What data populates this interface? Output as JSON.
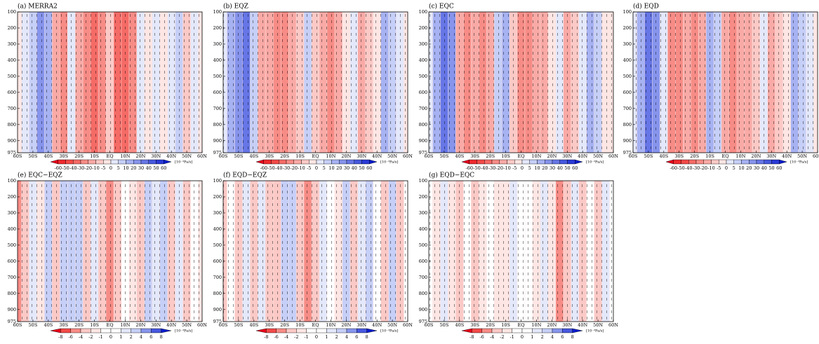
{
  "chart_data": [
    {
      "type": "heatmap",
      "title": "(a) MERRA2",
      "x": [
        -60,
        -55,
        -50,
        -45,
        -40,
        -35,
        -30,
        -25,
        -20,
        -15,
        -10,
        -5,
        0,
        5,
        10,
        15,
        20,
        25,
        30,
        35,
        40,
        45,
        50,
        55,
        60
      ],
      "values": [
        0,
        5,
        10,
        30,
        20,
        -10,
        -20,
        5,
        -10,
        -20,
        -30,
        -25,
        -5,
        -30,
        -35,
        -20,
        5,
        0,
        5,
        0,
        5,
        10,
        -5,
        5,
        0
      ],
      "xlim": [
        -60,
        60
      ],
      "ylim": [
        100,
        975
      ],
      "xticks": [
        {
          "value": -60,
          "label": "60S"
        },
        {
          "value": -50,
          "label": "50S"
        },
        {
          "value": -40,
          "label": "40S"
        },
        {
          "value": -30,
          "label": "30S"
        },
        {
          "value": -20,
          "label": "20S"
        },
        {
          "value": -10,
          "label": "10S"
        },
        {
          "value": 0,
          "label": "EQ"
        },
        {
          "value": 10,
          "label": "10N"
        },
        {
          "value": 20,
          "label": "20N"
        },
        {
          "value": 30,
          "label": "30N"
        },
        {
          "value": 40,
          "label": "40N"
        },
        {
          "value": 50,
          "label": "50N"
        },
        {
          "value": 60,
          "label": "60N"
        }
      ],
      "yticks": [
        100,
        200,
        300,
        400,
        500,
        600,
        700,
        800,
        900,
        975
      ],
      "colorbar": {
        "levels": [
          -60,
          -50,
          -40,
          -30,
          -20,
          -10,
          -5,
          0,
          5,
          10,
          20,
          30,
          40,
          50,
          60
        ],
        "unit": "[10⁻³Pa/s]",
        "colors": [
          "#e8001a",
          "#ef2a2e",
          "#f24a48",
          "#f56b66",
          "#f78c86",
          "#f9aaa6",
          "#fbc9c6",
          "#fde6e4",
          "#e4e8fb",
          "#c6cff7",
          "#a6b2f2",
          "#8694ec",
          "#6676e6",
          "#4658de",
          "#2a3ad6",
          "#0a1ccd"
        ]
      }
    },
    {
      "type": "heatmap",
      "title": "(b) EQZ",
      "x": [
        -60,
        -55,
        -50,
        -45,
        -40,
        -35,
        -30,
        -25,
        -20,
        -15,
        -10,
        -5,
        0,
        5,
        10,
        15,
        20,
        25,
        30,
        35,
        40,
        45,
        50,
        55,
        60
      ],
      "values": [
        5,
        15,
        30,
        35,
        10,
        -15,
        -10,
        -20,
        -20,
        -15,
        -5,
        10,
        -5,
        -15,
        -20,
        -10,
        0,
        5,
        -10,
        -5,
        0,
        15,
        10,
        5,
        0
      ],
      "xlim": [
        -60,
        60
      ],
      "ylim": [
        100,
        975
      ],
      "xticks": [
        {
          "value": -60,
          "label": "60S"
        },
        {
          "value": -50,
          "label": "50S"
        },
        {
          "value": -40,
          "label": "40S"
        },
        {
          "value": -30,
          "label": "30S"
        },
        {
          "value": -20,
          "label": "20S"
        },
        {
          "value": -10,
          "label": "10S"
        },
        {
          "value": 0,
          "label": "EQ"
        },
        {
          "value": 10,
          "label": "10N"
        },
        {
          "value": 20,
          "label": "20N"
        },
        {
          "value": 30,
          "label": "30N"
        },
        {
          "value": 40,
          "label": "40N"
        },
        {
          "value": 50,
          "label": "50N"
        },
        {
          "value": 60,
          "label": "60N"
        }
      ],
      "yticks": [
        100,
        200,
        300,
        400,
        500,
        600,
        700,
        800,
        900,
        975
      ],
      "colorbar": {
        "levels": [
          -60,
          -50,
          -40,
          -30,
          -20,
          -10,
          -5,
          0,
          5,
          10,
          20,
          30,
          40,
          50,
          60
        ],
        "unit": "[10⁻³Pa/s]",
        "colors": [
          "#e8001a",
          "#ef2a2e",
          "#f24a48",
          "#f56b66",
          "#f78c86",
          "#f9aaa6",
          "#fbc9c6",
          "#fde6e4",
          "#e4e8fb",
          "#c6cff7",
          "#a6b2f2",
          "#8694ec",
          "#6676e6",
          "#4658de",
          "#2a3ad6",
          "#0a1ccd"
        ]
      }
    },
    {
      "type": "heatmap",
      "title": "(c) EQC",
      "x": [
        -60,
        -55,
        -50,
        -45,
        -40,
        -35,
        -30,
        -25,
        -20,
        -15,
        -10,
        -5,
        0,
        5,
        10,
        15,
        20,
        25,
        30,
        35,
        40,
        45,
        50,
        55,
        60
      ],
      "values": [
        5,
        20,
        35,
        25,
        -10,
        -20,
        -15,
        -20,
        -10,
        10,
        20,
        -5,
        -20,
        -25,
        -15,
        -10,
        0,
        5,
        -10,
        -5,
        5,
        15,
        10,
        0,
        0
      ],
      "xlim": [
        -60,
        60
      ],
      "ylim": [
        100,
        975
      ],
      "xticks": [
        {
          "value": -60,
          "label": "60S"
        },
        {
          "value": -50,
          "label": "50S"
        },
        {
          "value": -40,
          "label": "40S"
        },
        {
          "value": -30,
          "label": "30S"
        },
        {
          "value": -20,
          "label": "20S"
        },
        {
          "value": -10,
          "label": "10S"
        },
        {
          "value": 0,
          "label": "EQ"
        },
        {
          "value": 10,
          "label": "10N"
        },
        {
          "value": 20,
          "label": "20N"
        },
        {
          "value": 30,
          "label": "30N"
        },
        {
          "value": 40,
          "label": "40N"
        },
        {
          "value": 50,
          "label": "50N"
        },
        {
          "value": 60,
          "label": "60N"
        }
      ],
      "yticks": [
        100,
        200,
        300,
        400,
        500,
        600,
        700,
        800,
        900,
        975
      ],
      "colorbar": {
        "levels": [
          -60,
          -50,
          -40,
          -30,
          -20,
          -10,
          -5,
          0,
          5,
          10,
          20,
          30,
          40,
          50,
          60
        ],
        "unit": "[10⁻³Pa/s]",
        "colors": [
          "#e8001a",
          "#ef2a2e",
          "#f24a48",
          "#f56b66",
          "#f78c86",
          "#f9aaa6",
          "#fbc9c6",
          "#fde6e4",
          "#e4e8fb",
          "#c6cff7",
          "#a6b2f2",
          "#8694ec",
          "#6676e6",
          "#4658de",
          "#2a3ad6",
          "#0a1ccd"
        ]
      }
    },
    {
      "type": "heatmap",
      "title": "(d) EQD",
      "x": [
        -60,
        -55,
        -50,
        -45,
        -40,
        -35,
        -30,
        -25,
        -20,
        -15,
        -10,
        -5,
        0,
        5,
        10,
        15,
        20,
        25,
        30,
        35,
        40,
        45,
        50,
        55,
        60
      ],
      "values": [
        5,
        15,
        35,
        30,
        5,
        -20,
        -25,
        -15,
        -20,
        -10,
        15,
        10,
        -10,
        -20,
        -15,
        -10,
        -5,
        5,
        -10,
        -5,
        0,
        15,
        10,
        5,
        0
      ],
      "xlim": [
        -60,
        60
      ],
      "ylim": [
        100,
        975
      ],
      "xticks": [
        {
          "value": -60,
          "label": "60S"
        },
        {
          "value": -50,
          "label": "50S"
        },
        {
          "value": -40,
          "label": "40S"
        },
        {
          "value": -30,
          "label": "30S"
        },
        {
          "value": -20,
          "label": "20S"
        },
        {
          "value": -10,
          "label": "10S"
        },
        {
          "value": 0,
          "label": "EQ"
        },
        {
          "value": 10,
          "label": "10N"
        },
        {
          "value": 20,
          "label": "20N"
        },
        {
          "value": 30,
          "label": "30N"
        },
        {
          "value": 40,
          "label": "40N"
        },
        {
          "value": 50,
          "label": "50N"
        },
        {
          "value": 60,
          "label": "60N"
        }
      ],
      "yticks": [
        100,
        200,
        300,
        400,
        500,
        600,
        700,
        800,
        900,
        975
      ],
      "colorbar": {
        "levels": [
          -60,
          -50,
          -40,
          -30,
          -20,
          -10,
          -5,
          0,
          5,
          10,
          20,
          30,
          40,
          50,
          60
        ],
        "unit": "[10⁻³Pa/s]",
        "colors": [
          "#e8001a",
          "#ef2a2e",
          "#f24a48",
          "#f56b66",
          "#f78c86",
          "#f9aaa6",
          "#fbc9c6",
          "#fde6e4",
          "#e4e8fb",
          "#c6cff7",
          "#a6b2f2",
          "#8694ec",
          "#6676e6",
          "#4658de",
          "#2a3ad6",
          "#0a1ccd"
        ]
      }
    },
    {
      "type": "heatmap",
      "title": "(e) EQC−EQZ",
      "x": [
        -60,
        -55,
        -50,
        -45,
        -40,
        -35,
        -30,
        -25,
        -20,
        -15,
        -10,
        -5,
        0,
        5,
        10,
        15,
        20,
        25,
        30,
        35,
        40,
        45,
        50,
        55,
        60
      ],
      "values": [
        -4,
        -2,
        2,
        -1,
        4,
        -2,
        3,
        4,
        3,
        -2,
        2,
        -3,
        -4,
        -2,
        1,
        -1,
        -2,
        4,
        2,
        3,
        -2,
        2,
        -3,
        1,
        -1
      ],
      "xlim": [
        -60,
        60
      ],
      "ylim": [
        100,
        975
      ],
      "xticks": [
        {
          "value": -60,
          "label": "60S"
        },
        {
          "value": -50,
          "label": "50S"
        },
        {
          "value": -40,
          "label": "40S"
        },
        {
          "value": -30,
          "label": "30S"
        },
        {
          "value": -20,
          "label": "20S"
        },
        {
          "value": -10,
          "label": "10S"
        },
        {
          "value": 0,
          "label": "EQ"
        },
        {
          "value": 10,
          "label": "10N"
        },
        {
          "value": 20,
          "label": "20N"
        },
        {
          "value": 30,
          "label": "30N"
        },
        {
          "value": 40,
          "label": "40N"
        },
        {
          "value": 50,
          "label": "50N"
        },
        {
          "value": 60,
          "label": "60N"
        }
      ],
      "yticks": [
        100,
        200,
        300,
        400,
        500,
        600,
        700,
        800,
        900,
        975
      ],
      "colorbar": {
        "levels": [
          -8,
          -6,
          -4,
          -2,
          -1,
          0,
          1,
          2,
          4,
          6,
          8
        ],
        "unit": "[10⁻³Pa/s]",
        "colors": [
          "#e8001a",
          "#f24a48",
          "#f78c86",
          "#fbc9c6",
          "#fde6e4",
          "#ffffff",
          "#ffffff",
          "#e4e8fb",
          "#c6cff7",
          "#8694ec",
          "#4658de",
          "#0a1ccd"
        ]
      }
    },
    {
      "type": "heatmap",
      "title": "(f) EQD−EQZ",
      "x": [
        -60,
        -55,
        -50,
        -45,
        -40,
        -35,
        -30,
        -25,
        -20,
        -15,
        -10,
        -5,
        0,
        5,
        10,
        15,
        20,
        25,
        30,
        35,
        40,
        45,
        50,
        55,
        60
      ],
      "values": [
        -3,
        1,
        -2,
        2,
        -3,
        2,
        -2,
        -3,
        4,
        3,
        -2,
        -4,
        -3,
        2,
        1,
        -1,
        3,
        -2,
        2,
        3,
        1,
        -2,
        3,
        -3,
        1
      ],
      "xlim": [
        -60,
        60
      ],
      "ylim": [
        100,
        975
      ],
      "xticks": [
        {
          "value": -60,
          "label": "60S"
        },
        {
          "value": -50,
          "label": "50S"
        },
        {
          "value": -40,
          "label": "40S"
        },
        {
          "value": -30,
          "label": "30S"
        },
        {
          "value": -20,
          "label": "20S"
        },
        {
          "value": -10,
          "label": "10S"
        },
        {
          "value": 0,
          "label": "EQ"
        },
        {
          "value": 10,
          "label": "10N"
        },
        {
          "value": 20,
          "label": "20N"
        },
        {
          "value": 30,
          "label": "30N"
        },
        {
          "value": 40,
          "label": "40N"
        },
        {
          "value": 50,
          "label": "50N"
        },
        {
          "value": 60,
          "label": "60N"
        }
      ],
      "yticks": [
        100,
        200,
        300,
        400,
        500,
        600,
        700,
        800,
        900,
        975
      ],
      "colorbar": {
        "levels": [
          -8,
          -6,
          -4,
          -2,
          -1,
          0,
          1,
          2,
          4,
          6,
          8
        ],
        "unit": "[10⁻³Pa/s]",
        "colors": [
          "#e8001a",
          "#f24a48",
          "#f78c86",
          "#fbc9c6",
          "#fde6e4",
          "#ffffff",
          "#ffffff",
          "#e4e8fb",
          "#c6cff7",
          "#8694ec",
          "#4658de",
          "#0a1ccd"
        ]
      }
    },
    {
      "type": "heatmap",
      "title": "(g) EQD−EQC",
      "x": [
        -60,
        -55,
        -50,
        -45,
        -40,
        -35,
        -30,
        -25,
        -20,
        -15,
        -10,
        -5,
        0,
        5,
        10,
        15,
        20,
        25,
        30,
        35,
        40,
        45,
        50,
        55,
        60
      ],
      "values": [
        1,
        -1,
        2,
        -1,
        -2,
        1,
        -2,
        -1,
        1,
        -1,
        -1,
        2,
        1,
        1,
        -1,
        2,
        -1,
        -4,
        -3,
        2,
        -2,
        1,
        -2,
        2,
        1
      ],
      "xlim": [
        -60,
        60
      ],
      "ylim": [
        100,
        975
      ],
      "xticks": [
        {
          "value": -60,
          "label": "60S"
        },
        {
          "value": -50,
          "label": "50S"
        },
        {
          "value": -40,
          "label": "40S"
        },
        {
          "value": -30,
          "label": "30S"
        },
        {
          "value": -20,
          "label": "20S"
        },
        {
          "value": -10,
          "label": "10S"
        },
        {
          "value": 0,
          "label": "EQ"
        },
        {
          "value": 10,
          "label": "10N"
        },
        {
          "value": 20,
          "label": "20N"
        },
        {
          "value": 30,
          "label": "30N"
        },
        {
          "value": 40,
          "label": "40N"
        },
        {
          "value": 50,
          "label": "50N"
        },
        {
          "value": 60,
          "label": "60N"
        }
      ],
      "yticks": [
        100,
        200,
        300,
        400,
        500,
        600,
        700,
        800,
        900,
        975
      ],
      "colorbar": {
        "levels": [
          -8,
          -6,
          -4,
          -2,
          -1,
          0,
          1,
          2,
          4,
          6,
          8
        ],
        "unit": "[10⁻³Pa/s]",
        "colors": [
          "#e8001a",
          "#f24a48",
          "#f78c86",
          "#fbc9c6",
          "#fde6e4",
          "#ffffff",
          "#ffffff",
          "#e4e8fb",
          "#c6cff7",
          "#8694ec",
          "#4658de",
          "#0a1ccd"
        ]
      }
    }
  ]
}
